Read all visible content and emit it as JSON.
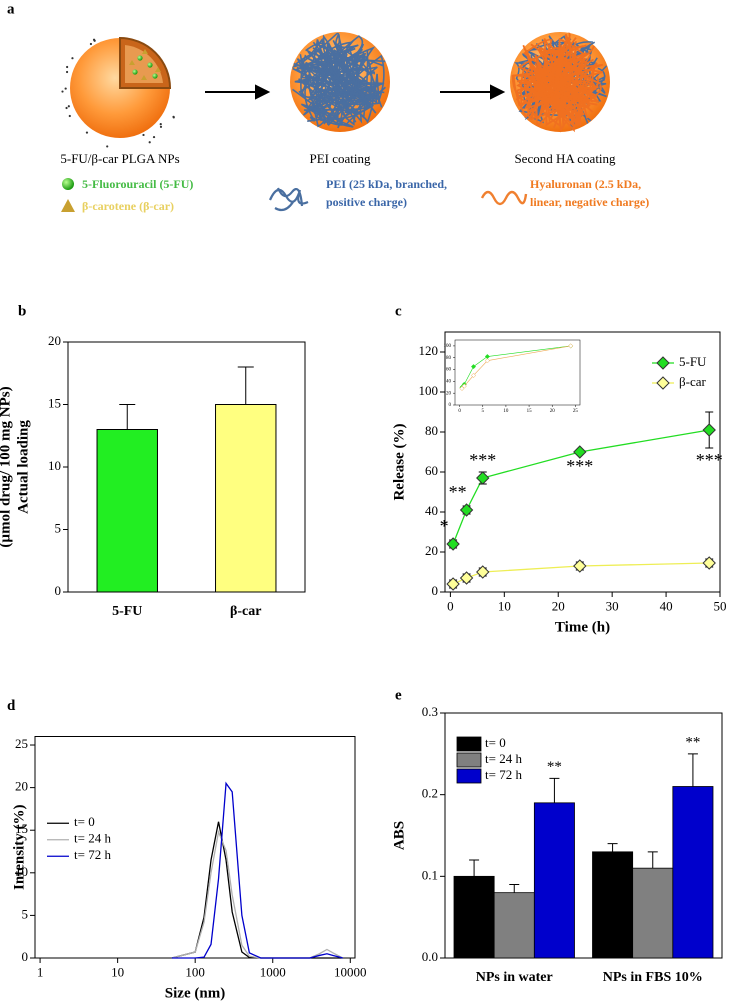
{
  "diagram": {
    "label": "a",
    "steps": [
      "5-FU/β-car PLGA NPs",
      "PEI coating",
      "Second HA coating"
    ],
    "legend": {
      "fu": "5-Fluorouracil (5-FU)",
      "car": "β-carotene (β-car)",
      "pei": [
        "PEI (25 kDa, branched,",
        "positive charge)"
      ],
      "ha": [
        "Hyaluronan (2.5 kDa,",
        "linear, negative charge)"
      ]
    }
  },
  "chart_data": [
    {
      "type": "bar",
      "label": "b",
      "ylabel": [
        "Actual loading",
        "(µmol drug/ 100 mg NPs)"
      ],
      "categories": [
        "5-FU",
        "β-car"
      ],
      "values": [
        13,
        15
      ],
      "errors": [
        2,
        3
      ],
      "colors": [
        "#22ee22",
        "#ffff80"
      ],
      "ylim": [
        0,
        20
      ],
      "yticks": [
        0,
        5,
        10,
        15,
        20
      ]
    },
    {
      "type": "line",
      "label": "c",
      "ylabel": "Release (%)",
      "xlabel": "Time (h)",
      "markers": true,
      "legend": "upper right",
      "x": [
        0.5,
        3,
        6,
        24,
        48
      ],
      "series": [
        {
          "name": "5-FU",
          "color": "#22dd22",
          "marker_fill": "#22dd22",
          "values": [
            24,
            41,
            57,
            70,
            81
          ],
          "errors": [
            2,
            2,
            3,
            1,
            9
          ],
          "annotations": [
            "*",
            "**",
            "***",
            "***",
            "***"
          ]
        },
        {
          "name": "β-car",
          "color": "#eeee55",
          "marker_fill": "#ffff99",
          "values": [
            4,
            7,
            10,
            13,
            14.5
          ],
          "errors": [
            2,
            2,
            2,
            2,
            2
          ]
        }
      ],
      "xlim": [
        -1,
        50
      ],
      "xticks": [
        0,
        10,
        20,
        30,
        40,
        50
      ],
      "ylim": [
        0,
        130
      ],
      "yticks": [
        0,
        20,
        40,
        60,
        80,
        100,
        120
      ]
    },
    {
      "type": "line",
      "markers": true,
      "x": [
        0.5,
        1,
        3,
        6,
        24
      ],
      "series": [
        {
          "color": "#22dd22",
          "marker_fill": "#22dd22",
          "values": [
            30,
            35,
            65,
            82,
            100
          ]
        },
        {
          "color": "#eeaa55",
          "marker_fill": "#ffffff",
          "values": [
            28,
            32,
            50,
            75,
            100
          ]
        }
      ],
      "xlim": [
        -1,
        26
      ],
      "xticks": [
        0,
        5,
        10,
        15,
        20,
        25
      ],
      "ylim": [
        0,
        110
      ],
      "yticks": [
        0,
        20,
        40,
        60,
        80,
        100
      ]
    },
    {
      "type": "line",
      "label": "d",
      "ylabel": "Intensity (%)",
      "xlabel": "Size (nm)",
      "xscale": "log",
      "legend": "center left",
      "x": [
        50,
        100,
        130,
        160,
        200,
        250,
        300,
        400,
        500,
        700,
        1000,
        3000,
        4000,
        5000,
        6000,
        8000
      ],
      "series": [
        {
          "name": "t= 0",
          "color": "#000000",
          "values": [
            0,
            0.7,
            4.8,
            11.5,
            16,
            11.5,
            5.4,
            0.7,
            0.06,
            0,
            0,
            0,
            0,
            0,
            0,
            0
          ]
        },
        {
          "name": "t= 24 h",
          "color": "#b0b0b0",
          "values": [
            0,
            0.7,
            4.2,
            10,
            14.8,
            12.6,
            7.4,
            1.5,
            0.2,
            0,
            0,
            0,
            0.5,
            1,
            0.6,
            0
          ]
        },
        {
          "name": "t= 72 h",
          "color": "#0000cc",
          "values": [
            0,
            0,
            0.1,
            1.6,
            9.3,
            20.5,
            19.5,
            5,
            0.6,
            0,
            0,
            0,
            0.3,
            0.5,
            0.3,
            0
          ]
        }
      ],
      "xlim": [
        0.86,
        11500
      ],
      "xticks": [
        1,
        10,
        100,
        1000,
        10000
      ],
      "ylim": [
        0,
        26
      ],
      "yticks": [
        0,
        5,
        10,
        15,
        20,
        25
      ]
    },
    {
      "type": "bar",
      "label": "e",
      "ylabel": "ABS",
      "legend": "upper left",
      "categories": [
        "NPs in water",
        "NPs in FBS 10%"
      ],
      "series": [
        {
          "name": "t= 0",
          "color": "#000000",
          "values": [
            0.1,
            0.13
          ],
          "errors": [
            0.02,
            0.01
          ]
        },
        {
          "name": "t= 24 h",
          "color": "#808080",
          "values": [
            0.08,
            0.11
          ],
          "errors": [
            0.01,
            0.02
          ]
        },
        {
          "name": "t= 72 h",
          "color": "#0000cc",
          "values": [
            0.19,
            0.21
          ],
          "errors": [
            0.03,
            0.04
          ],
          "annotations": [
            "**",
            "**"
          ]
        }
      ],
      "ylim": [
        0,
        0.3
      ],
      "yticks": [
        {
          "value": 0,
          "label": "0.0"
        },
        0.1,
        0.2,
        0.3
      ]
    }
  ]
}
